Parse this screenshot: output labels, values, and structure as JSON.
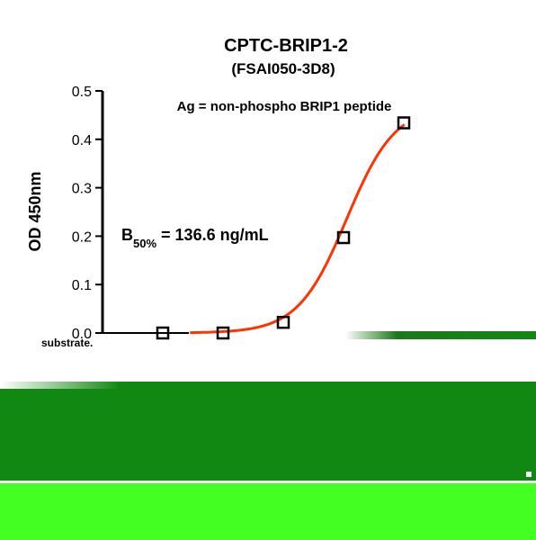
{
  "chart_data": {
    "type": "scatter",
    "title": "CPTC-BRIP1-2",
    "subtitle": "(FSAI050-3D8)",
    "ylabel": "OD 450nm",
    "xlabel": "",
    "ylim": [
      0,
      0.5
    ],
    "yticks": [
      "0.0",
      "0.1",
      "0.2",
      "0.3",
      "0.4",
      "0.5"
    ],
    "grid": false,
    "annotation": "Ag = non-phospho BRIP1 peptide",
    "b50": {
      "base": "B",
      "sub": "50%",
      "text": " = 136.6 ng/mL"
    },
    "points": [
      {
        "x": 1,
        "y": 0.0
      },
      {
        "x": 2,
        "y": 0.0
      },
      {
        "x": 3,
        "y": 0.022
      },
      {
        "x": 4,
        "y": 0.197
      },
      {
        "x": 5,
        "y": 0.434
      }
    ],
    "fit_curve_color": "#ff3300",
    "marker_color": "#000000"
  },
  "footer": {
    "caption": "substrate."
  },
  "colors": {
    "dark_green": "#118811",
    "bright_green": "#44ff22",
    "mid_green": "#1a8a1a"
  }
}
